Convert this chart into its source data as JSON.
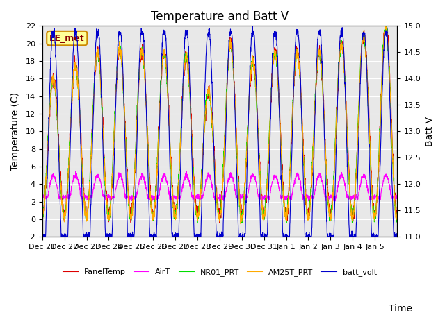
{
  "title": "Temperature and Batt V",
  "ylabel_left": "Temperature (C)",
  "ylabel_right": "Batt V",
  "xlabel": "Time",
  "site_label": "EE_met",
  "ylim_left": [
    -2,
    22
  ],
  "ylim_right": [
    11.0,
    15.0
  ],
  "yticks_left": [
    -2,
    0,
    2,
    4,
    6,
    8,
    10,
    12,
    14,
    16,
    18,
    20,
    22
  ],
  "yticks_right": [
    11.0,
    11.5,
    12.0,
    12.5,
    13.0,
    13.5,
    14.0,
    14.5,
    15.0
  ],
  "xtick_labels": [
    "Dec 21",
    "Dec 22",
    "Dec 23",
    "Dec 24",
    "Dec 25",
    "Dec 26",
    "Dec 27",
    "Dec 28",
    "Dec 29",
    "Dec 30",
    "Dec 31",
    "Jan 1",
    "Jan 2",
    "Jan 3",
    "Jan 4",
    "Jan 5"
  ],
  "colors": {
    "PanelTemp": "#dd0000",
    "AirT": "#ff00ff",
    "NR01_PRT": "#00dd00",
    "AM25T_PRT": "#ffaa00",
    "batt_volt": "#0000cc"
  },
  "legend_entries": [
    "PanelTemp",
    "AirT",
    "NR01_PRT",
    "AM25T_PRT",
    "batt_volt"
  ],
  "background_color": "#e8e8e8",
  "plot_bg_color": "#e8e8e8",
  "title_fontsize": 12,
  "axis_fontsize": 10,
  "tick_fontsize": 8
}
